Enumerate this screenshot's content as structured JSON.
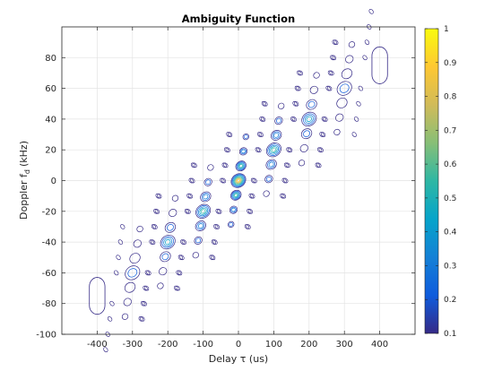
{
  "chart_data": {
    "type": "contour",
    "title": "Ambiguity Function",
    "xlabel": "Delay τ (us)",
    "ylabel_main": "Doppler f",
    "ylabel_sub": "d",
    "ylabel_unit": "(kHz)",
    "xlim": [
      -500,
      500
    ],
    "ylim": [
      -100,
      100
    ],
    "xticks": [
      -400,
      -300,
      -200,
      -100,
      0,
      100,
      200,
      300,
      400
    ],
    "yticks": [
      -100,
      -80,
      -60,
      -40,
      -20,
      0,
      20,
      40,
      60,
      80
    ],
    "grid": true,
    "colorbar": {
      "colormap": "parula",
      "range": [
        0.1,
        1
      ],
      "ticks": [
        0.1,
        0.2,
        0.3,
        0.4,
        0.5,
        0.6,
        0.7,
        0.8,
        0.9,
        1
      ]
    },
    "contour_colors": [
      "#352a87",
      "#0f5cdd",
      "#1481d6",
      "#06a4ca",
      "#2eb7a4",
      "#87bf77",
      "#d1bb59",
      "#fec832",
      "#f9fb0e"
    ],
    "lobe_groups": [
      {
        "center_delay": 0,
        "center_doppler": 0,
        "peak": 0.85
      },
      {
        "center_delay": 100,
        "center_doppler": 20,
        "peak": 0.55
      },
      {
        "center_delay": -100,
        "center_doppler": -20,
        "peak": 0.55
      },
      {
        "center_delay": 200,
        "center_doppler": 40,
        "peak": 0.4
      },
      {
        "center_delay": -200,
        "center_doppler": -40,
        "peak": 0.4
      },
      {
        "center_delay": 300,
        "center_doppler": 60,
        "peak": 0.25
      },
      {
        "center_delay": -300,
        "center_doppler": -60,
        "peak": 0.25
      }
    ],
    "edge_lobes": [
      {
        "delay": 400,
        "doppler": 75
      },
      {
        "delay": -400,
        "doppler": -75
      }
    ]
  }
}
